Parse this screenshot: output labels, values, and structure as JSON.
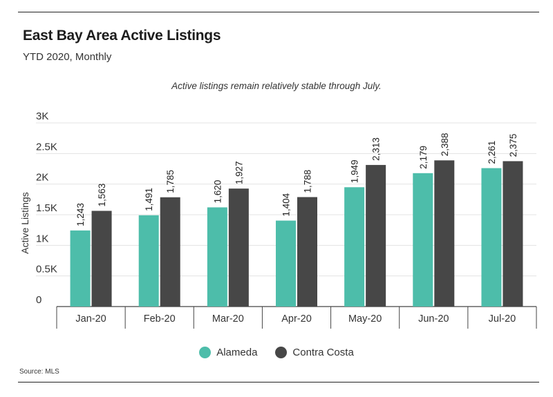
{
  "header": {
    "title": "East Bay Area Active Listings",
    "subtitle": "YTD 2020, Monthly"
  },
  "annotation": "Active listings remain relatively stable through July.",
  "source": "Source: MLS",
  "colors": {
    "alameda": "#4dbdaa",
    "contra_costa": "#474747",
    "grid": "#e3e3e3",
    "axis": "#444444"
  },
  "chart_data": {
    "type": "bar",
    "categories": [
      "Jan-20",
      "Feb-20",
      "Mar-20",
      "Apr-20",
      "May-20",
      "Jun-20",
      "Jul-20"
    ],
    "series": [
      {
        "name": "Alameda",
        "values": [
          1243,
          1491,
          1620,
          1404,
          1949,
          2179,
          2261
        ],
        "labels": [
          "1,243",
          "1,491",
          "1,620",
          "1,404",
          "1,949",
          "2,179",
          "2,261"
        ]
      },
      {
        "name": "Contra Costa",
        "values": [
          1563,
          1785,
          1927,
          1788,
          2313,
          2388,
          2375
        ],
        "labels": [
          "1,563",
          "1,785",
          "1,927",
          "1,788",
          "2,313",
          "2,388",
          "2,375"
        ]
      }
    ],
    "xlabel": "",
    "ylabel": "Active Listings",
    "ylim": [
      0,
      3000
    ],
    "yticks": [
      0,
      500,
      1000,
      1500,
      2000,
      2500,
      3000
    ],
    "ytick_labels": [
      "0",
      "0.5K",
      "1K",
      "1.5K",
      "2K",
      "2.5K",
      "3K"
    ],
    "grid": true,
    "legend_position": "bottom"
  }
}
